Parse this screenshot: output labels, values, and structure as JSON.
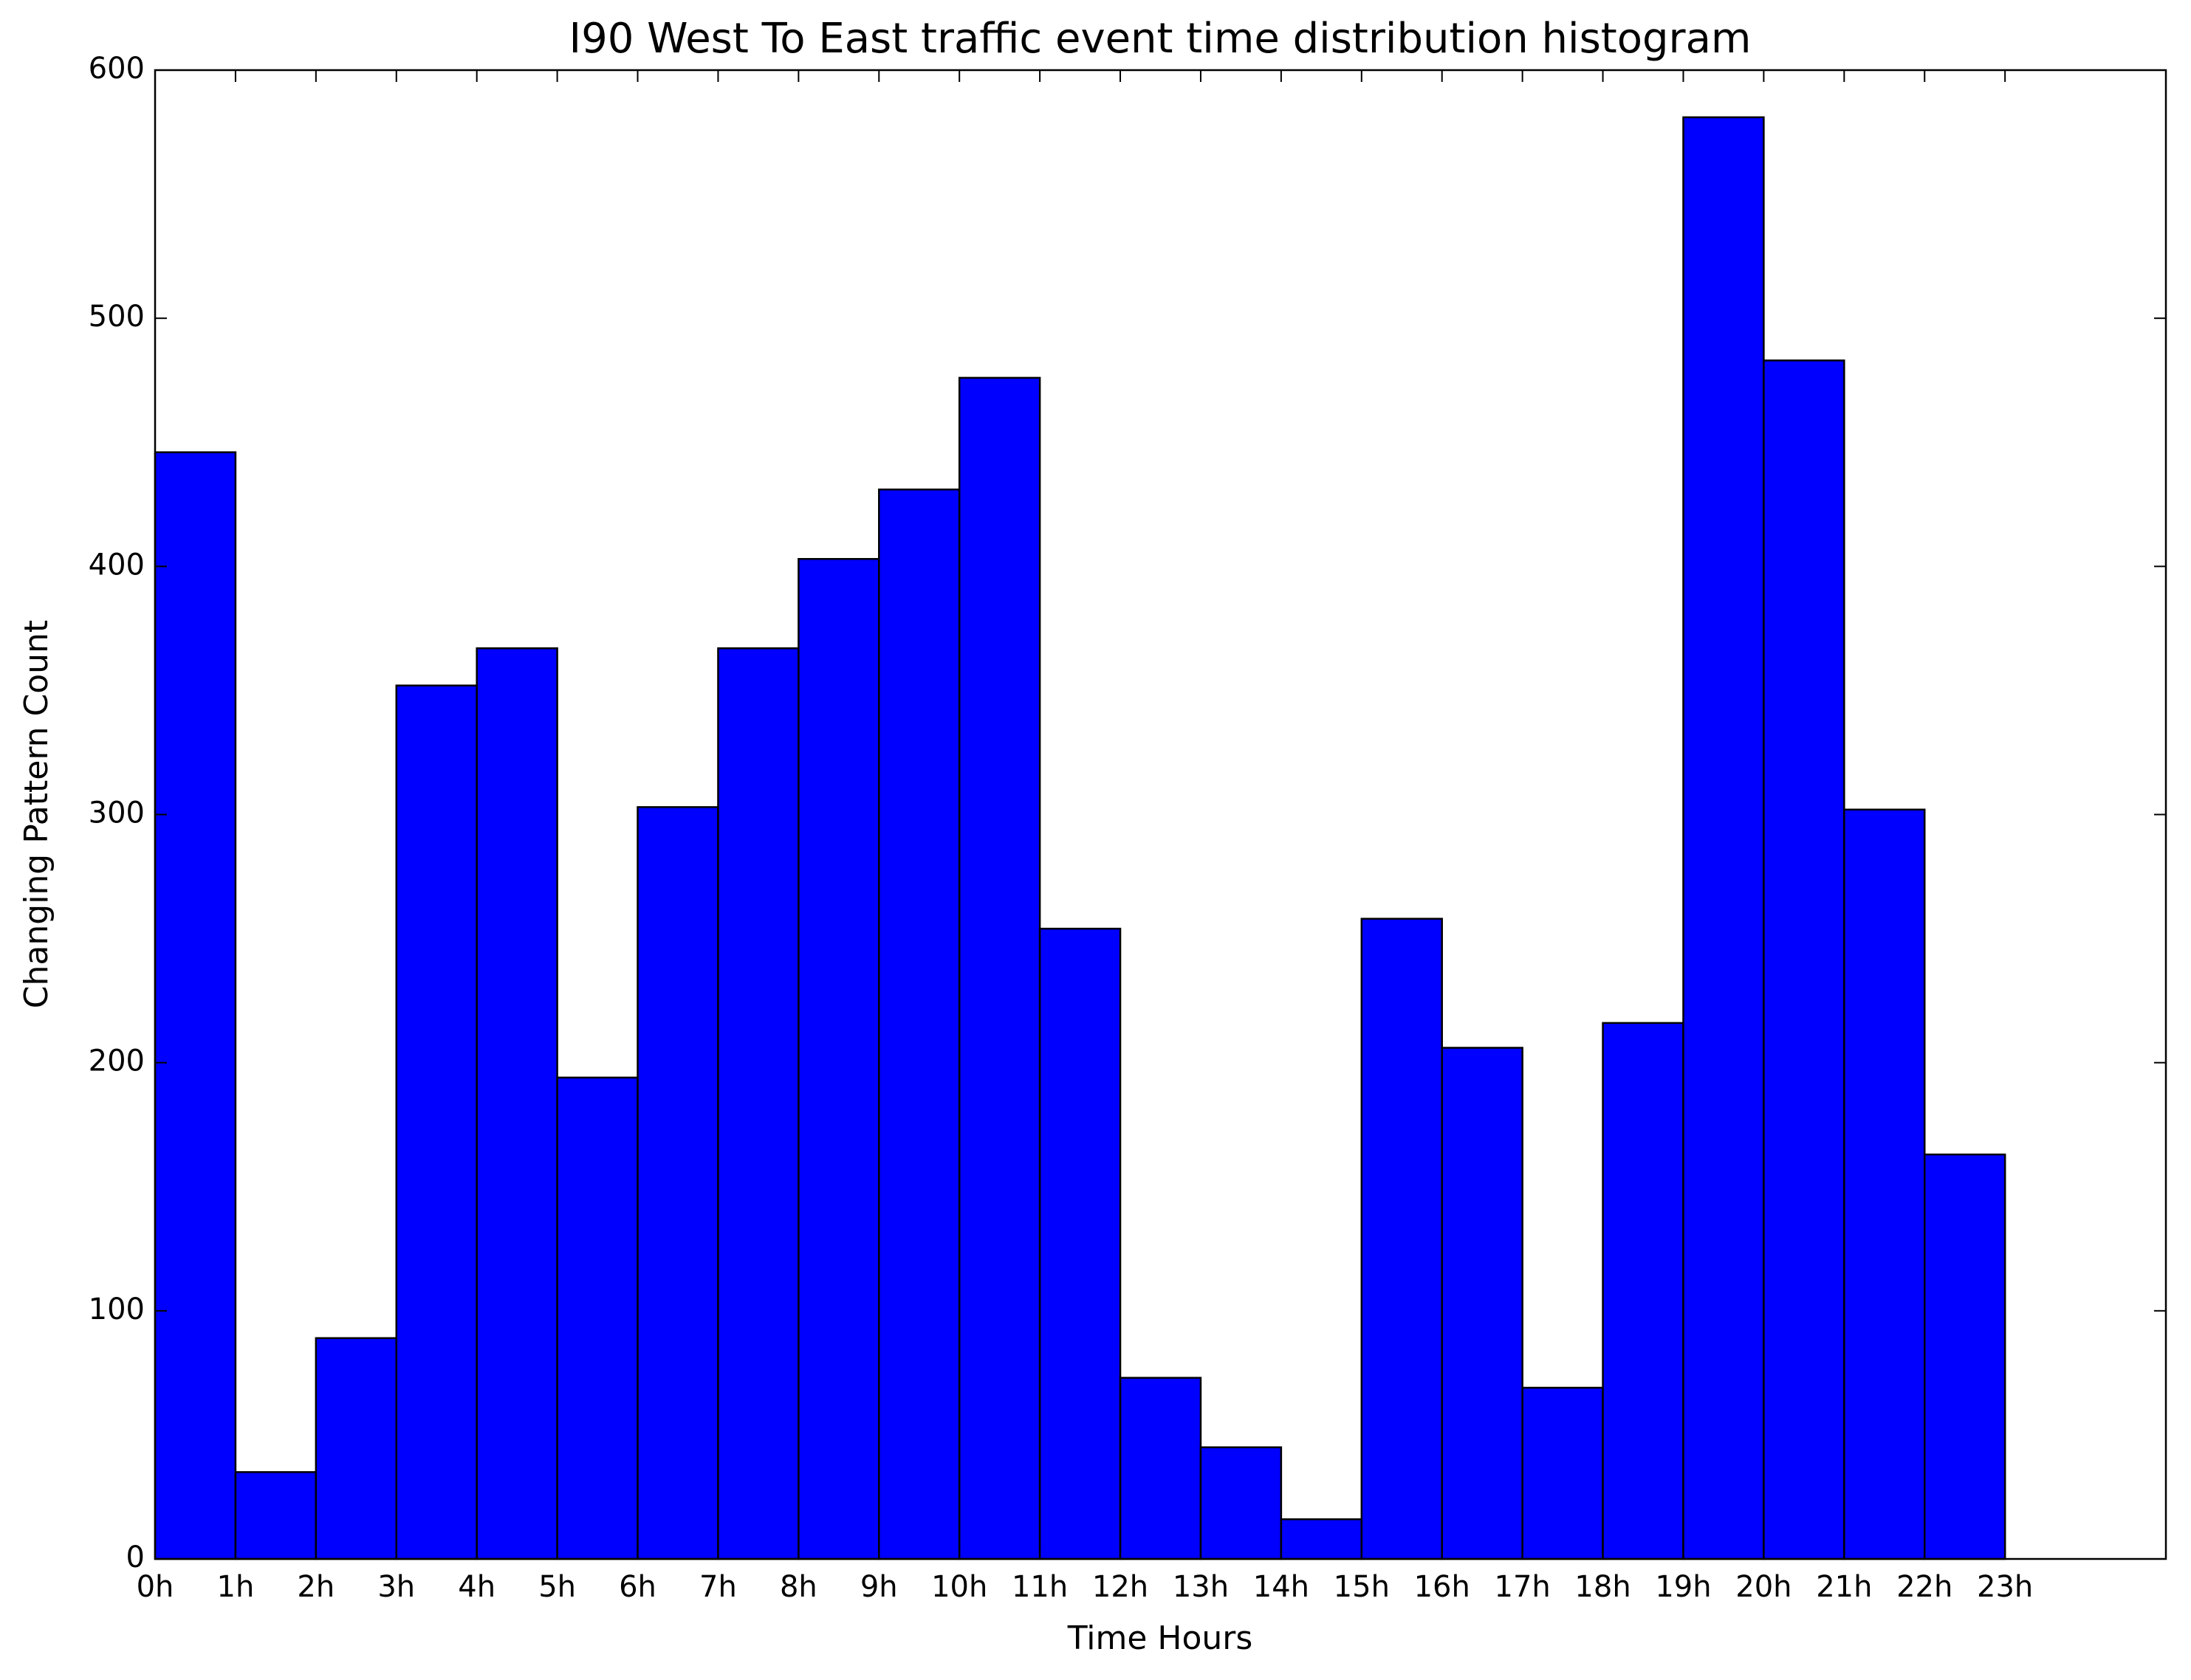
{
  "chart_data": {
    "type": "histogram",
    "title": "I90 West To East traffic event time distribution histogram",
    "xlabel": "Time Hours",
    "ylabel": "Changing Pattern Count",
    "bins": [
      0,
      1,
      2,
      3,
      4,
      5,
      6,
      7,
      8,
      9,
      10,
      11,
      12,
      13,
      14,
      15,
      16,
      17,
      18,
      19,
      20,
      21,
      22,
      23
    ],
    "values": [
      446,
      35,
      89,
      352,
      367,
      194,
      303,
      367,
      403,
      431,
      476,
      254,
      73,
      45,
      16,
      258,
      206,
      69,
      216,
      581,
      483,
      302,
      163
    ],
    "color": "#0000ff",
    "xlim": [
      0,
      25
    ],
    "ylim": [
      0,
      600
    ],
    "xticks": [
      {
        "value": 0,
        "label": "0h"
      },
      {
        "value": 1,
        "label": "1h"
      },
      {
        "value": 2,
        "label": "2h"
      },
      {
        "value": 3,
        "label": "3h"
      },
      {
        "value": 4,
        "label": "4h"
      },
      {
        "value": 5,
        "label": "5h"
      },
      {
        "value": 6,
        "label": "6h"
      },
      {
        "value": 7,
        "label": "7h"
      },
      {
        "value": 8,
        "label": "8h"
      },
      {
        "value": 9,
        "label": "9h"
      },
      {
        "value": 10,
        "label": "10h"
      },
      {
        "value": 11,
        "label": "11h"
      },
      {
        "value": 12,
        "label": "12h"
      },
      {
        "value": 13,
        "label": "13h"
      },
      {
        "value": 14,
        "label": "14h"
      },
      {
        "value": 15,
        "label": "15h"
      },
      {
        "value": 16,
        "label": "16h"
      },
      {
        "value": 17,
        "label": "17h"
      },
      {
        "value": 18,
        "label": "18h"
      },
      {
        "value": 19,
        "label": "19h"
      },
      {
        "value": 20,
        "label": "20h"
      },
      {
        "value": 21,
        "label": "21h"
      },
      {
        "value": 22,
        "label": "22h"
      },
      {
        "value": 23,
        "label": "23h"
      }
    ],
    "yticks": [
      0,
      100,
      200,
      300,
      400,
      500,
      600
    ],
    "grid": false
  }
}
